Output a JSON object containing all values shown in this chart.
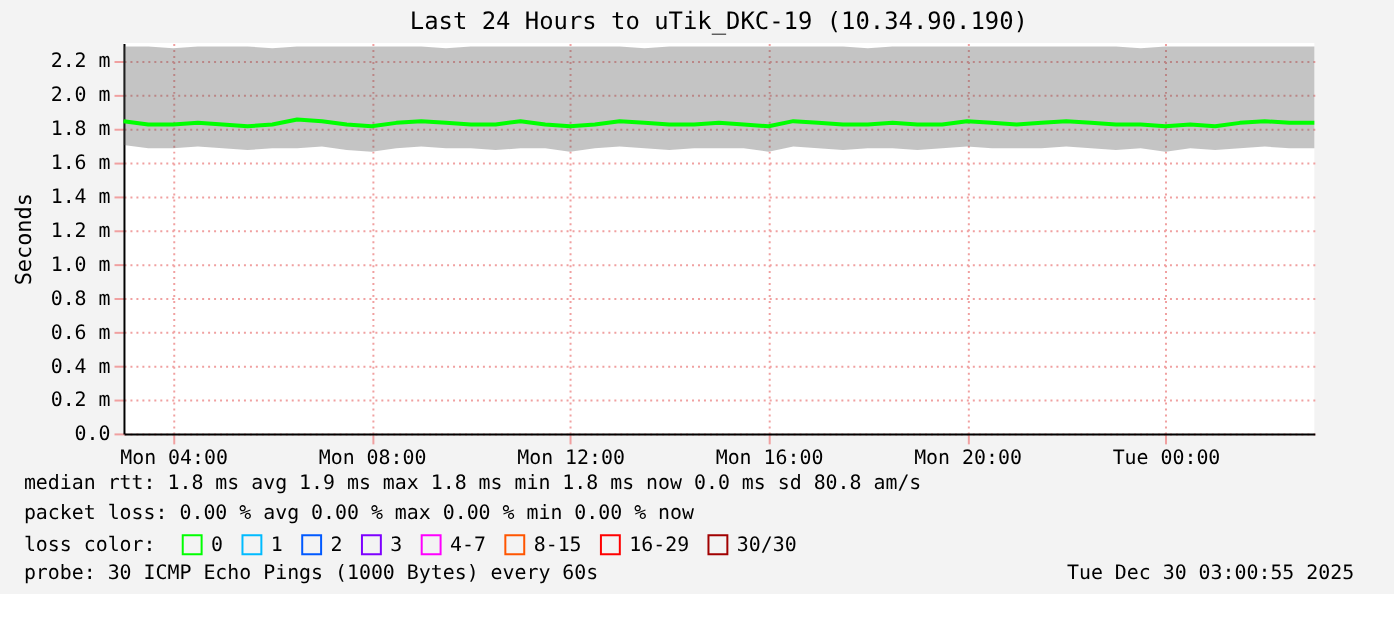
{
  "chart_data": {
    "type": "line",
    "title": "Last 24 Hours to uTik_DKC-19 (10.34.90.190)",
    "ylabel": "Seconds",
    "x": [
      "2025-12-29T03:00",
      "2025-12-29T03:30",
      "2025-12-29T04:00",
      "2025-12-29T04:30",
      "2025-12-29T05:00",
      "2025-12-29T05:30",
      "2025-12-29T06:00",
      "2025-12-29T06:30",
      "2025-12-29T07:00",
      "2025-12-29T07:30",
      "2025-12-29T08:00",
      "2025-12-29T08:30",
      "2025-12-29T09:00",
      "2025-12-29T09:30",
      "2025-12-29T10:00",
      "2025-12-29T10:30",
      "2025-12-29T11:00",
      "2025-12-29T11:30",
      "2025-12-29T12:00",
      "2025-12-29T12:30",
      "2025-12-29T13:00",
      "2025-12-29T13:30",
      "2025-12-29T14:00",
      "2025-12-29T14:30",
      "2025-12-29T15:00",
      "2025-12-29T15:30",
      "2025-12-29T16:00",
      "2025-12-29T16:30",
      "2025-12-29T17:00",
      "2025-12-29T17:30",
      "2025-12-29T18:00",
      "2025-12-29T18:30",
      "2025-12-29T19:00",
      "2025-12-29T19:30",
      "2025-12-29T20:00",
      "2025-12-29T20:30",
      "2025-12-29T21:00",
      "2025-12-29T21:30",
      "2025-12-29T22:00",
      "2025-12-29T22:30",
      "2025-12-29T23:00",
      "2025-12-29T23:30",
      "2025-12-30T00:00",
      "2025-12-30T00:30",
      "2025-12-30T01:00",
      "2025-12-30T01:30",
      "2025-12-30T02:00",
      "2025-12-30T02:30",
      "2025-12-30T03:00"
    ],
    "series": [
      {
        "name": "0",
        "color": "#00ff00",
        "values": [
          1.84,
          1.82,
          1.82,
          1.83,
          1.82,
          1.81,
          1.82,
          1.85,
          1.84,
          1.82,
          1.81,
          1.83,
          1.84,
          1.83,
          1.82,
          1.82,
          1.84,
          1.82,
          1.81,
          1.82,
          1.84,
          1.83,
          1.82,
          1.82,
          1.83,
          1.82,
          1.81,
          1.84,
          1.83,
          1.82,
          1.82,
          1.83,
          1.82,
          1.82,
          1.84,
          1.83,
          1.82,
          1.83,
          1.84,
          1.83,
          1.82,
          1.82,
          1.81,
          1.82,
          1.81,
          1.83,
          1.84,
          1.83,
          1.83
        ],
        "lower": [
          1.7,
          1.68,
          1.68,
          1.69,
          1.68,
          1.67,
          1.68,
          1.68,
          1.69,
          1.67,
          1.66,
          1.68,
          1.69,
          1.68,
          1.68,
          1.67,
          1.68,
          1.68,
          1.66,
          1.68,
          1.69,
          1.68,
          1.67,
          1.68,
          1.68,
          1.68,
          1.66,
          1.69,
          1.68,
          1.67,
          1.68,
          1.68,
          1.67,
          1.68,
          1.69,
          1.68,
          1.68,
          1.68,
          1.69,
          1.68,
          1.67,
          1.68,
          1.66,
          1.68,
          1.67,
          1.68,
          1.69,
          1.68,
          1.68
        ],
        "upper": [
          2.28,
          2.28,
          2.27,
          2.28,
          2.28,
          2.28,
          2.27,
          2.28,
          2.28,
          2.28,
          2.28,
          2.28,
          2.28,
          2.27,
          2.28,
          2.28,
          2.28,
          2.28,
          2.28,
          2.28,
          2.28,
          2.27,
          2.28,
          2.28,
          2.28,
          2.28,
          2.28,
          2.28,
          2.28,
          2.28,
          2.27,
          2.28,
          2.28,
          2.28,
          2.28,
          2.28,
          2.28,
          2.28,
          2.28,
          2.28,
          2.28,
          2.27,
          2.28,
          2.28,
          2.28,
          2.28,
          2.28,
          2.28,
          2.28
        ]
      },
      {
        "name": "1",
        "color": "#00bbff",
        "values": [
          null,
          null,
          null,
          null,
          null,
          null,
          null,
          null,
          null,
          null,
          null,
          null,
          null,
          null,
          null,
          null,
          null,
          null,
          null,
          null,
          null,
          null,
          null,
          null,
          null,
          null,
          null,
          null,
          null,
          null,
          null,
          null,
          null,
          null,
          null,
          null,
          null,
          null,
          null,
          null,
          null,
          null,
          null,
          null,
          null,
          null,
          null,
          null,
          null
        ]
      },
      {
        "name": "2",
        "color": "#0059ff",
        "values": [
          null,
          null,
          null,
          null,
          null,
          null,
          null,
          null,
          null,
          null,
          null,
          null,
          null,
          null,
          null,
          null,
          null,
          null,
          null,
          null,
          null,
          null,
          null,
          null,
          null,
          null,
          null,
          null,
          null,
          null,
          null,
          null,
          null,
          null,
          null,
          null,
          null,
          null,
          null,
          null,
          null,
          null,
          null,
          null,
          null,
          null,
          null,
          null,
          null
        ]
      },
      {
        "name": "3",
        "color": "#7e00ff",
        "values": [
          null,
          null,
          null,
          null,
          null,
          null,
          null,
          null,
          null,
          null,
          null,
          null,
          null,
          null,
          null,
          null,
          null,
          null,
          null,
          null,
          null,
          null,
          null,
          null,
          null,
          null,
          null,
          null,
          null,
          null,
          null,
          null,
          null,
          null,
          null,
          null,
          null,
          null,
          null,
          null,
          null,
          null,
          null,
          null,
          null,
          null,
          null,
          null,
          null
        ]
      },
      {
        "name": "4-7",
        "color": "#ff00ff",
        "values": [
          null,
          null,
          null,
          null,
          null,
          null,
          null,
          null,
          null,
          null,
          null,
          null,
          null,
          null,
          null,
          null,
          null,
          null,
          null,
          null,
          null,
          null,
          null,
          null,
          null,
          null,
          null,
          null,
          null,
          null,
          null,
          null,
          null,
          null,
          null,
          null,
          null,
          null,
          null,
          null,
          null,
          null,
          null,
          null,
          null,
          null,
          null,
          null,
          null
        ]
      },
      {
        "name": "8-15",
        "color": "#ff5500",
        "values": [
          null,
          null,
          null,
          null,
          null,
          null,
          null,
          null,
          null,
          null,
          null,
          null,
          null,
          null,
          null,
          null,
          null,
          null,
          null,
          null,
          null,
          null,
          null,
          null,
          null,
          null,
          null,
          null,
          null,
          null,
          null,
          null,
          null,
          null,
          null,
          null,
          null,
          null,
          null,
          null,
          null,
          null,
          null,
          null,
          null,
          null,
          null,
          null,
          null
        ]
      },
      {
        "name": "16-29",
        "color": "#ff0000",
        "values": [
          null,
          null,
          null,
          null,
          null,
          null,
          null,
          null,
          null,
          null,
          null,
          null,
          null,
          null,
          null,
          null,
          null,
          null,
          null,
          null,
          null,
          null,
          null,
          null,
          null,
          null,
          null,
          null,
          null,
          null,
          null,
          null,
          null,
          null,
          null,
          null,
          null,
          null,
          null,
          null,
          null,
          null,
          null,
          null,
          null,
          null,
          null,
          null,
          null
        ]
      },
      {
        "name": "30/30",
        "color": "#a10000",
        "values": [
          null,
          null,
          null,
          null,
          null,
          null,
          null,
          null,
          null,
          null,
          null,
          null,
          null,
          null,
          null,
          null,
          null,
          null,
          null,
          null,
          null,
          null,
          null,
          null,
          null,
          null,
          null,
          null,
          null,
          null,
          null,
          null,
          null,
          null,
          null,
          null,
          null,
          null,
          null,
          null,
          null,
          null,
          null,
          null,
          null,
          null,
          null,
          null,
          null
        ]
      }
    ],
    "legend_title": "loss color:",
    "legend": "bottom",
    "xlim": [
      "2025-12-29T03:00",
      "2025-12-30T03:00"
    ],
    "xticks": [
      {
        "value": "2025-12-29T04:00",
        "label": "Mon 04:00"
      },
      {
        "value": "2025-12-29T08:00",
        "label": "Mon 08:00"
      },
      {
        "value": "2025-12-29T12:00",
        "label": "Mon 12:00"
      },
      {
        "value": "2025-12-29T16:00",
        "label": "Mon 16:00"
      },
      {
        "value": "2025-12-29T20:00",
        "label": "Mon 20:00"
      },
      {
        "value": "2025-12-30T00:00",
        "label": "Tue 00:00"
      }
    ],
    "ylim": [
      0,
      2.3
    ],
    "yticks": [
      {
        "value": 0,
        "label": "0.0"
      },
      {
        "value": 0.2,
        "label": "0.2 m"
      },
      {
        "value": 0.4,
        "label": "0.4 m"
      },
      {
        "value": 0.6,
        "label": "0.6 m"
      },
      {
        "value": 0.8,
        "label": "0.8 m"
      },
      {
        "value": 1.0,
        "label": "1.0 m"
      },
      {
        "value": 1.2,
        "label": "1.2 m"
      },
      {
        "value": 1.4,
        "label": "1.4 m"
      },
      {
        "value": 1.6,
        "label": "1.6 m"
      },
      {
        "value": 1.8,
        "label": "1.8 m"
      },
      {
        "value": 2.0,
        "label": "2.0 m"
      },
      {
        "value": 2.2,
        "label": "2.2 m"
      }
    ],
    "grid": true,
    "marker": "none",
    "line_style": "solid",
    "annotations": [
      "median rtt:  1.8 ms avg  1.9 ms max  1.8 ms min  1.8 ms now  0.0 ms sd  80.8  am/s",
      "packet loss: 0.00 % avg  0.00 % max  0.00 % min  0.00 % now",
      "probe:       30 ICMP Echo Pings (1000 Bytes) every 60s",
      "Tue Dec 30 03:00:55 2025"
    ]
  }
}
